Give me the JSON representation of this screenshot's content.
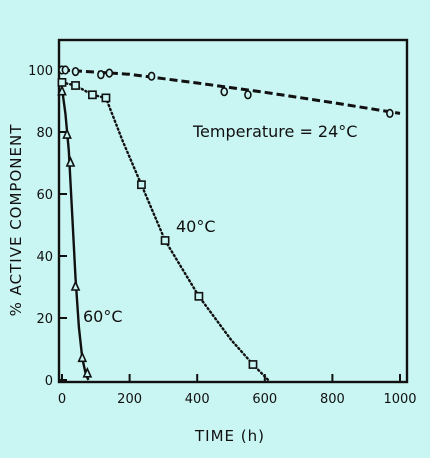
{
  "chart_data": {
    "type": "line",
    "title": "",
    "xlabel": "TIME (h)",
    "ylabel": "% ACTIVE COMPONENT",
    "xlim": [
      0,
      1000
    ],
    "ylim": [
      0,
      100
    ],
    "x_ticks": [
      0,
      200,
      400,
      600,
      800,
      1000
    ],
    "y_ticks": [
      0,
      20,
      40,
      60,
      80,
      100
    ],
    "grid": false,
    "colors": {
      "ink": "#111111",
      "background": "#c9f5f2"
    },
    "series": [
      {
        "label": "Temperature = 24°C",
        "marker": "circle",
        "line_style": "dashed",
        "points": [
          [
            0,
            100
          ],
          [
            10,
            100
          ],
          [
            40,
            99.5
          ],
          [
            115,
            98.5
          ],
          [
            140,
            99
          ],
          [
            265,
            98
          ],
          [
            480,
            93
          ],
          [
            550,
            92
          ],
          [
            970,
            86
          ]
        ],
        "curve": [
          [
            0,
            100
          ],
          [
            200,
            98.6
          ],
          [
            400,
            95.8
          ],
          [
            600,
            92.8
          ],
          [
            800,
            89.5
          ],
          [
            1000,
            86
          ]
        ]
      },
      {
        "label": "40°C",
        "marker": "square",
        "line_style": "dotted",
        "points": [
          [
            0,
            96
          ],
          [
            40,
            95
          ],
          [
            90,
            92
          ],
          [
            130,
            91
          ],
          [
            235,
            63
          ],
          [
            305,
            45
          ],
          [
            405,
            27
          ],
          [
            565,
            5
          ]
        ],
        "curve": [
          [
            0,
            96
          ],
          [
            40,
            95
          ],
          [
            90,
            92
          ],
          [
            130,
            91
          ],
          [
            180,
            77
          ],
          [
            235,
            63
          ],
          [
            305,
            45
          ],
          [
            405,
            27
          ],
          [
            500,
            13
          ],
          [
            565,
            5
          ],
          [
            610,
            0
          ]
        ]
      },
      {
        "label": "60°C",
        "marker": "triangle",
        "line_style": "solid",
        "points": [
          [
            0,
            93
          ],
          [
            15,
            79
          ],
          [
            25,
            70
          ],
          [
            40,
            30
          ],
          [
            60,
            7
          ],
          [
            75,
            2
          ]
        ],
        "curve": [
          [
            0,
            94
          ],
          [
            10,
            86
          ],
          [
            20,
            74
          ],
          [
            30,
            54
          ],
          [
            40,
            33
          ],
          [
            50,
            17
          ],
          [
            60,
            7
          ],
          [
            70,
            2
          ],
          [
            78,
            0
          ]
        ]
      }
    ]
  }
}
